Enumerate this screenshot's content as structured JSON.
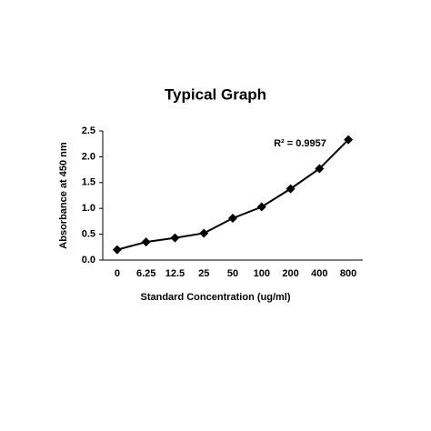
{
  "chart_data": {
    "type": "line",
    "title": "Typical Graph",
    "x_label": "Standard Concentration (ug/ml)",
    "y_label": "Absorbance at 450 nm",
    "annotation": "R² = 0.9957",
    "categories": [
      "0",
      "6.25",
      "12.5",
      "25",
      "50",
      "100",
      "200",
      "400",
      "800"
    ],
    "values": [
      0.2,
      0.35,
      0.43,
      0.52,
      0.81,
      1.03,
      1.38,
      1.77,
      2.33
    ],
    "color": "#000000",
    "ylim": [
      0,
      2.5
    ],
    "yticks": [
      {
        "value": 0,
        "label": "0.0"
      },
      0.5,
      {
        "value": 1,
        "label": "1.0"
      },
      1.5,
      {
        "value": 2,
        "label": "2.0"
      },
      2.5
    ]
  }
}
